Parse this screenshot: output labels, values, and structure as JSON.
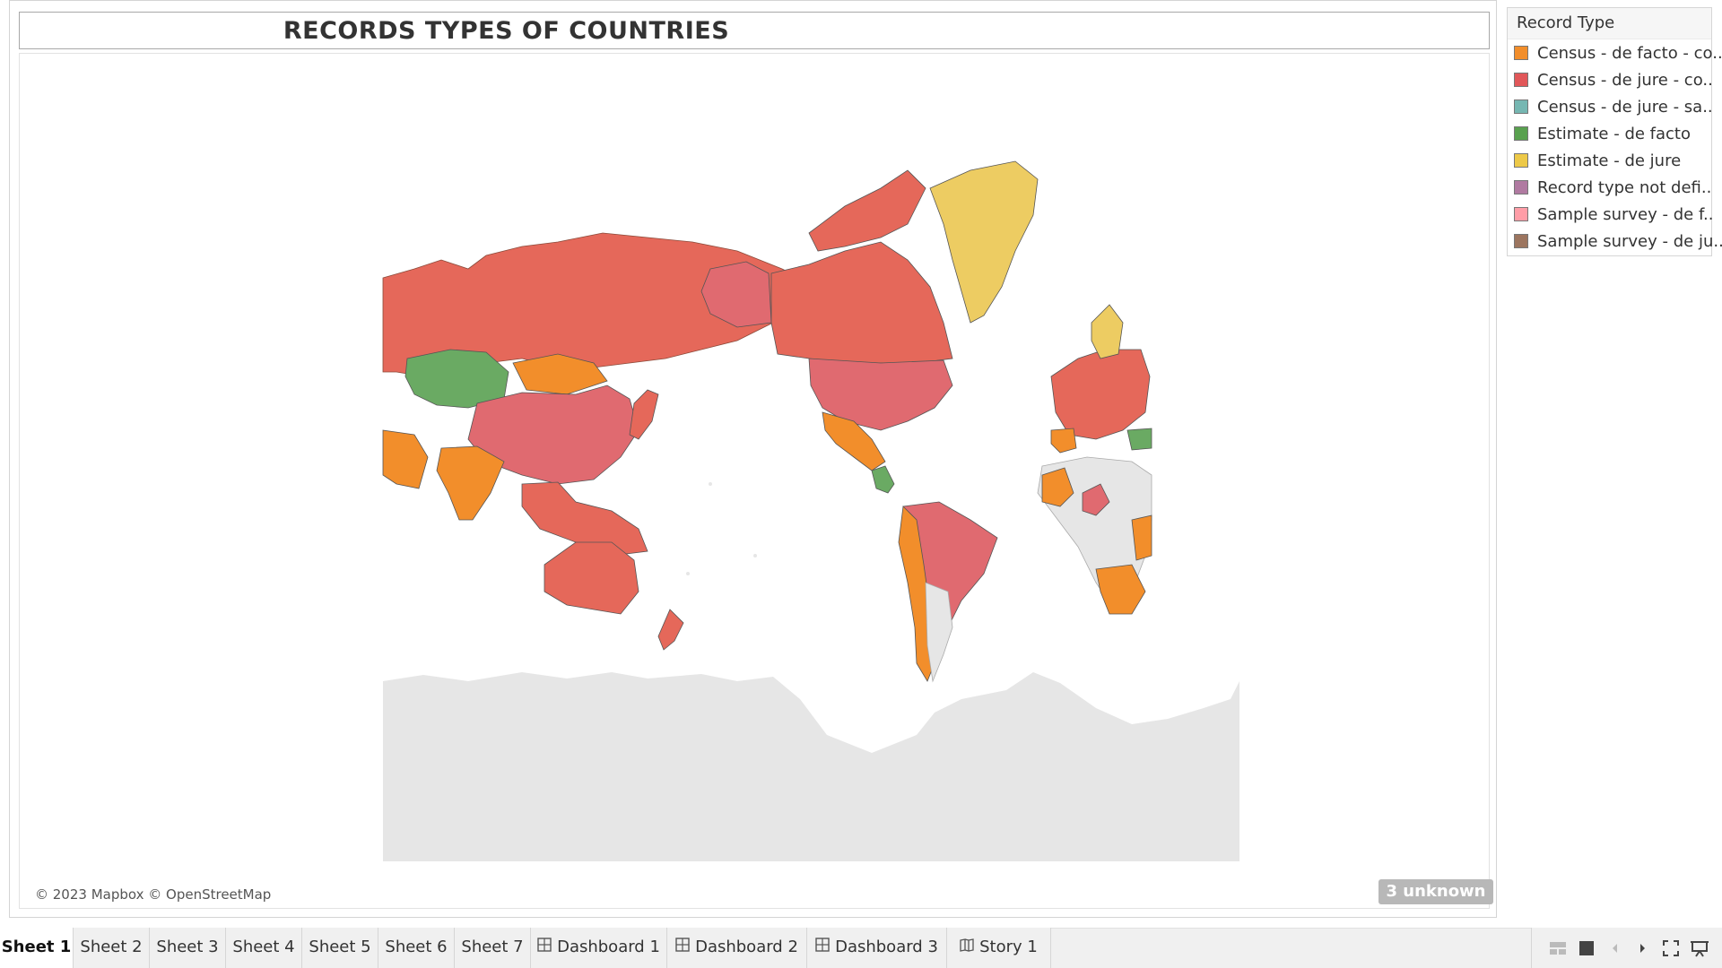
{
  "title": "RECORDS TYPES OF COUNTRIES",
  "attribution": "© 2023 Mapbox © OpenStreetMap",
  "unknown_badge": "3 unknown",
  "legend": {
    "title": "Record Type",
    "items": [
      {
        "label": "Census - de facto - co..",
        "color": "#f28e2b"
      },
      {
        "label": "Census - de jure - co..",
        "color": "#e15759"
      },
      {
        "label": "Census - de jure - sa..",
        "color": "#76b7b2"
      },
      {
        "label": "Estimate - de facto",
        "color": "#59a14f"
      },
      {
        "label": "Estimate - de jure",
        "color": "#edc948"
      },
      {
        "label": "Record type not defi..",
        "color": "#b07aa1"
      },
      {
        "label": "Sample survey - de f..",
        "color": "#ff9da7"
      },
      {
        "label": "Sample survey - de ju..",
        "color": "#9c755f"
      }
    ]
  },
  "tabs": [
    {
      "label": "Sheet 1",
      "active": true,
      "icon": ""
    },
    {
      "label": "Sheet 2",
      "active": false,
      "icon": ""
    },
    {
      "label": "Sheet 3",
      "active": false,
      "icon": ""
    },
    {
      "label": "Sheet 4",
      "active": false,
      "icon": ""
    },
    {
      "label": "Sheet 5",
      "active": false,
      "icon": ""
    },
    {
      "label": "Sheet 6",
      "active": false,
      "icon": ""
    },
    {
      "label": "Sheet 7",
      "active": false,
      "icon": ""
    },
    {
      "label": "Dashboard 1",
      "active": false,
      "icon": "dashboard-icon"
    },
    {
      "label": "Dashboard 2",
      "active": false,
      "icon": "dashboard-icon"
    },
    {
      "label": "Dashboard 3",
      "active": false,
      "icon": "dashboard-icon"
    },
    {
      "label": "Story 1",
      "active": false,
      "icon": "story-icon"
    }
  ],
  "nav_controls": [
    "grid-view-icon",
    "single-view-icon",
    "previous-sheet-icon",
    "next-sheet-icon",
    "fullscreen-icon",
    "presentation-mode-icon"
  ],
  "colors": {
    "census_de_facto": "#f28e2b",
    "census_de_jure": "#e15759",
    "estimate_de_facto": "#59a14f",
    "estimate_de_jure": "#edc948",
    "sample_survey_de_facto": "#ff9da7",
    "no_data": "#e6e6e6"
  }
}
